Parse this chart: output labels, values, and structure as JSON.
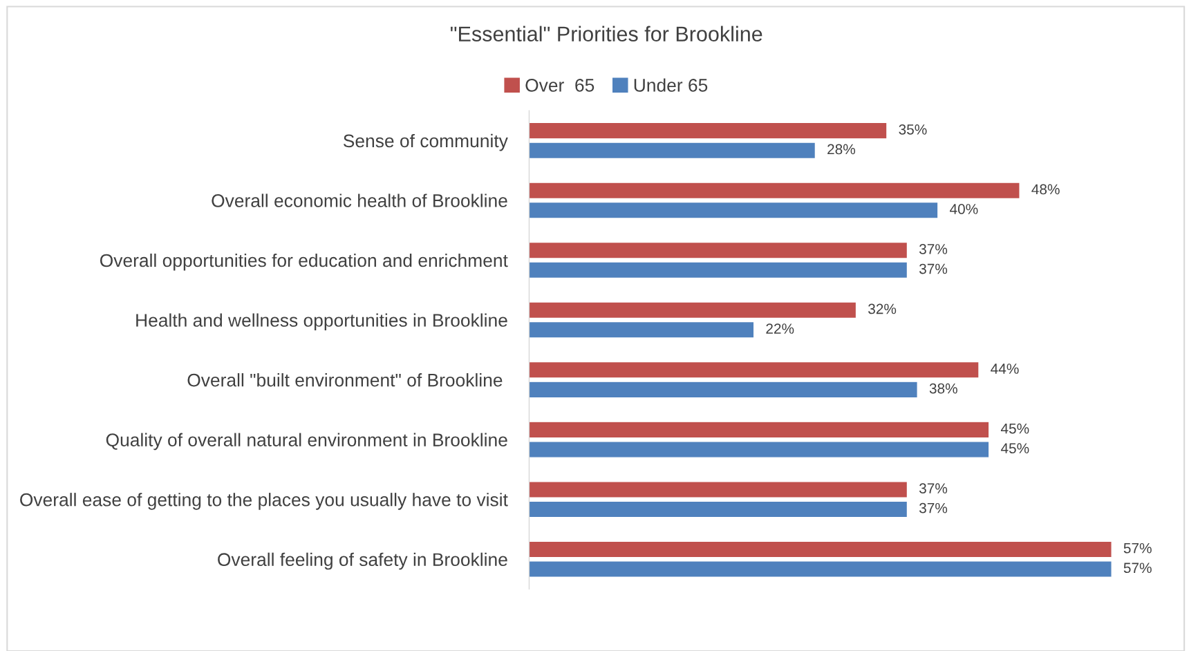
{
  "chart_data": {
    "type": "bar",
    "orientation": "horizontal",
    "title": "\"Essential\" Priorities for Brookline",
    "categories": [
      "Sense of community",
      "Overall economic health of Brookline",
      "Overall opportunities for education and enrichment",
      "Health and wellness opportunities in Brookline",
      "Overall \"built environment\" of Brookline ",
      "Quality of overall natural environment in Brookline",
      "Overall ease of getting to the places you usually have to visit",
      "Overall feeling of safety in Brookline"
    ],
    "series": [
      {
        "name": "Over  65",
        "color": "#c0504d",
        "values": [
          35,
          48,
          37,
          32,
          44,
          45,
          37,
          57
        ],
        "value_labels": [
          "35%",
          "48%",
          "37%",
          "32%",
          "44%",
          "45%",
          "37%",
          "57%"
        ]
      },
      {
        "name": "Under 65",
        "color": "#4f81bd",
        "values": [
          28,
          40,
          37,
          22,
          38,
          45,
          37,
          57
        ],
        "value_labels": [
          "28%",
          "40%",
          "37%",
          "22%",
          "38%",
          "45%",
          "37%",
          "57%"
        ]
      }
    ],
    "legend": "top",
    "grid": false
  }
}
